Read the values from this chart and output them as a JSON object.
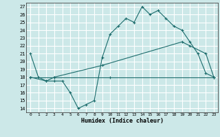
{
  "title": "",
  "xlabel": "Humidex (Indice chaleur)",
  "bg_color": "#cce8e8",
  "line_color": "#1a6b6b",
  "grid_color": "#ffffff",
  "xlim": [
    -0.5,
    23.5
  ],
  "ylim": [
    13.5,
    27.5
  ],
  "yticks": [
    14,
    15,
    16,
    17,
    18,
    19,
    20,
    21,
    22,
    23,
    24,
    25,
    26,
    27
  ],
  "xticks": [
    0,
    1,
    2,
    3,
    4,
    5,
    6,
    7,
    8,
    9,
    10,
    11,
    12,
    13,
    14,
    15,
    16,
    17,
    18,
    19,
    20,
    21,
    22,
    23
  ],
  "series1_x": [
    0,
    1,
    2,
    3,
    4,
    5,
    6,
    7,
    8,
    9,
    10,
    11,
    12,
    13,
    14,
    15,
    16,
    17,
    18,
    19,
    20,
    21,
    22,
    23
  ],
  "series1_y": [
    21.0,
    18.0,
    17.5,
    17.5,
    17.5,
    16.0,
    14.0,
    14.5,
    15.0,
    20.5,
    23.5,
    24.5,
    25.5,
    25.0,
    27.0,
    26.0,
    26.5,
    25.5,
    24.5,
    24.0,
    22.5,
    21.0,
    18.5,
    18.0
  ],
  "series2_x": [
    0,
    2,
    3,
    9,
    19,
    20,
    22,
    23
  ],
  "series2_y": [
    18.0,
    17.5,
    18.0,
    19.5,
    22.5,
    22.0,
    21.0,
    18.0
  ],
  "series3_x": [
    0,
    3,
    10,
    23
  ],
  "series3_y": [
    18.0,
    18.0,
    18.0,
    18.0
  ]
}
